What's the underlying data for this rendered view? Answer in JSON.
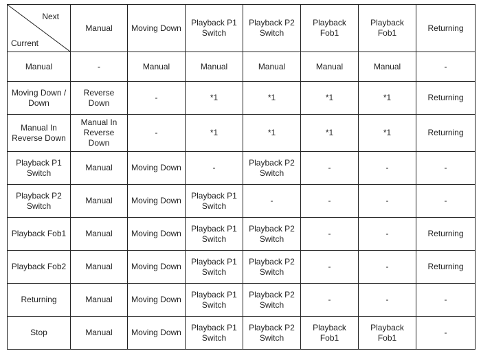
{
  "corner": {
    "next": "Next",
    "current": "Current"
  },
  "columns": [
    "Manual",
    "Moving Down",
    "Playback P1 Switch",
    "Playback P2 Switch",
    "Playback Fob1",
    "Playback Fob1",
    "Returning"
  ],
  "rows": [
    {
      "label": "Manual",
      "cells": [
        "-",
        "Manual",
        "Manual",
        "Manual",
        "Manual",
        "Manual",
        "-"
      ]
    },
    {
      "label": "Moving Down / Down",
      "cells": [
        "Reverse Down",
        "-",
        "*1",
        "*1",
        "*1",
        "*1",
        "Returning"
      ]
    },
    {
      "label": "Manual In Reverse Down",
      "cells": [
        "Manual In Reverse Down",
        "-",
        "*1",
        "*1",
        "*1",
        "*1",
        "Returning"
      ]
    },
    {
      "label": "Playback P1 Switch",
      "cells": [
        "Manual",
        "Moving Down",
        "-",
        "Playback P2 Switch",
        "-",
        "-",
        "-"
      ]
    },
    {
      "label": "Playback P2 Switch",
      "cells": [
        "Manual",
        "Moving Down",
        "Playback P1 Switch",
        "-",
        "-",
        "-",
        "-"
      ]
    },
    {
      "label": "Playback Fob1",
      "cells": [
        "Manual",
        "Moving Down",
        "Playback P1 Switch",
        "Playback P2 Switch",
        "-",
        "-",
        "Returning"
      ]
    },
    {
      "label": "Playback Fob2",
      "cells": [
        "Manual",
        "Moving Down",
        "Playback P1 Switch",
        "Playback P2 Switch",
        "-",
        "-",
        "Returning"
      ]
    },
    {
      "label": "Returning",
      "cells": [
        "Manual",
        "Moving Down",
        "Playback P1 Switch",
        "Playback P2 Switch",
        "-",
        "-",
        "-"
      ]
    },
    {
      "label": "Stop",
      "cells": [
        "Manual",
        "Moving Down",
        "Playback P1 Switch",
        "Playback P2 Switch",
        "Playback Fob1",
        "Playback Fob1",
        "-"
      ]
    }
  ]
}
